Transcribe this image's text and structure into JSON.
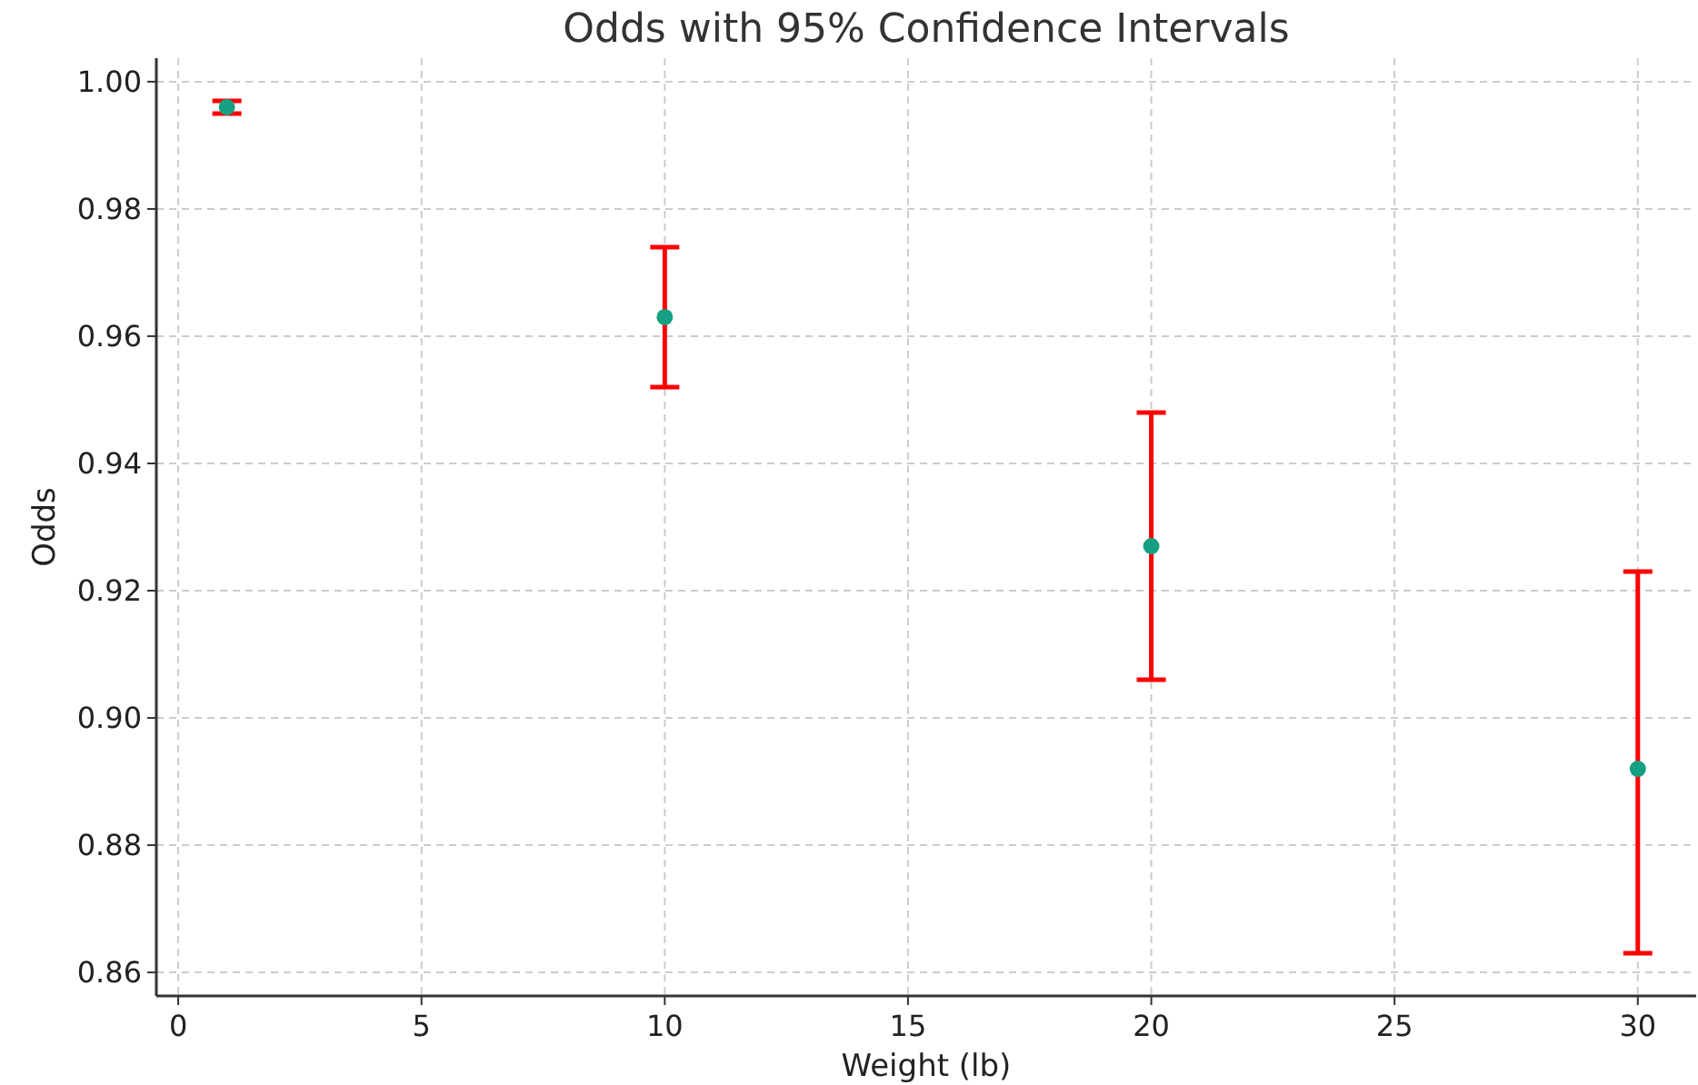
{
  "chart_data": {
    "type": "scatter",
    "title": "Odds with 95% Confidence Intervals",
    "xlabel": "Weight (lb)",
    "ylabel": "Odds",
    "x": [
      1,
      10,
      20,
      30
    ],
    "series": [
      {
        "color": "#16a083",
        "values": [
          0.996,
          0.963,
          0.927,
          0.892
        ],
        "errors": [
          [
            0.995,
            0.997
          ],
          [
            0.952,
            0.974
          ],
          [
            0.906,
            0.948
          ],
          [
            0.863,
            0.923
          ]
        ]
      }
    ],
    "xlim": [
      -0.45,
      31.2
    ],
    "ylim": [
      0.8563,
      1.0037
    ],
    "xticks": [
      0,
      5,
      10,
      15,
      20,
      25,
      30
    ],
    "yticks": [
      {
        "value": 0.86,
        "label": "0.86"
      },
      {
        "value": 0.88,
        "label": "0.88"
      },
      {
        "value": 0.9,
        "label": "0.90"
      },
      {
        "value": 0.92,
        "label": "0.92"
      },
      {
        "value": 0.94,
        "label": "0.94"
      },
      {
        "value": 0.96,
        "label": "0.96"
      },
      {
        "value": 0.98,
        "label": "0.98"
      },
      {
        "value": 1,
        "label": "1.00"
      }
    ],
    "grid": true,
    "marker": "circle"
  }
}
